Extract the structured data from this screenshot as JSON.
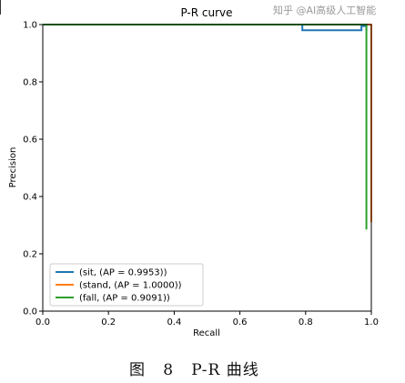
{
  "chart_data": {
    "type": "line",
    "title": "P-R curve",
    "xlabel": "Recall",
    "ylabel": "Precision",
    "xlim": [
      0.0,
      1.0
    ],
    "ylim": [
      0.0,
      1.0
    ],
    "xticks": [
      "0.0",
      "0.2",
      "0.4",
      "0.6",
      "0.8",
      "1.0"
    ],
    "yticks": [
      "0.0",
      "0.2",
      "0.4",
      "0.6",
      "0.8",
      "1.0"
    ],
    "grid": false,
    "legend_position": "lower-left",
    "series": [
      {
        "name": "(sit, (AP = 0.9953))",
        "color": "#1f77b4",
        "x": [
          0.0,
          0.79,
          0.79,
          0.97,
          0.97,
          0.985,
          0.985,
          0.985
        ],
        "y": [
          1.0,
          1.0,
          0.98,
          0.98,
          0.995,
          0.995,
          0.98,
          0.985
        ]
      },
      {
        "name": "(stand, (AP = 1.0000))",
        "color": "#ff7f0e",
        "x": [
          0.0,
          1.0,
          1.0
        ],
        "y": [
          1.0,
          1.0,
          0.31
        ]
      },
      {
        "name": "(fall, (AP = 0.9091))",
        "color": "#2ca02c",
        "x": [
          0.0,
          0.985,
          0.985
        ],
        "y": [
          1.0,
          1.0,
          0.285
        ]
      }
    ]
  },
  "caption": "图   8   P-R 曲线",
  "watermark": "知乎 @AI高级人工智能"
}
